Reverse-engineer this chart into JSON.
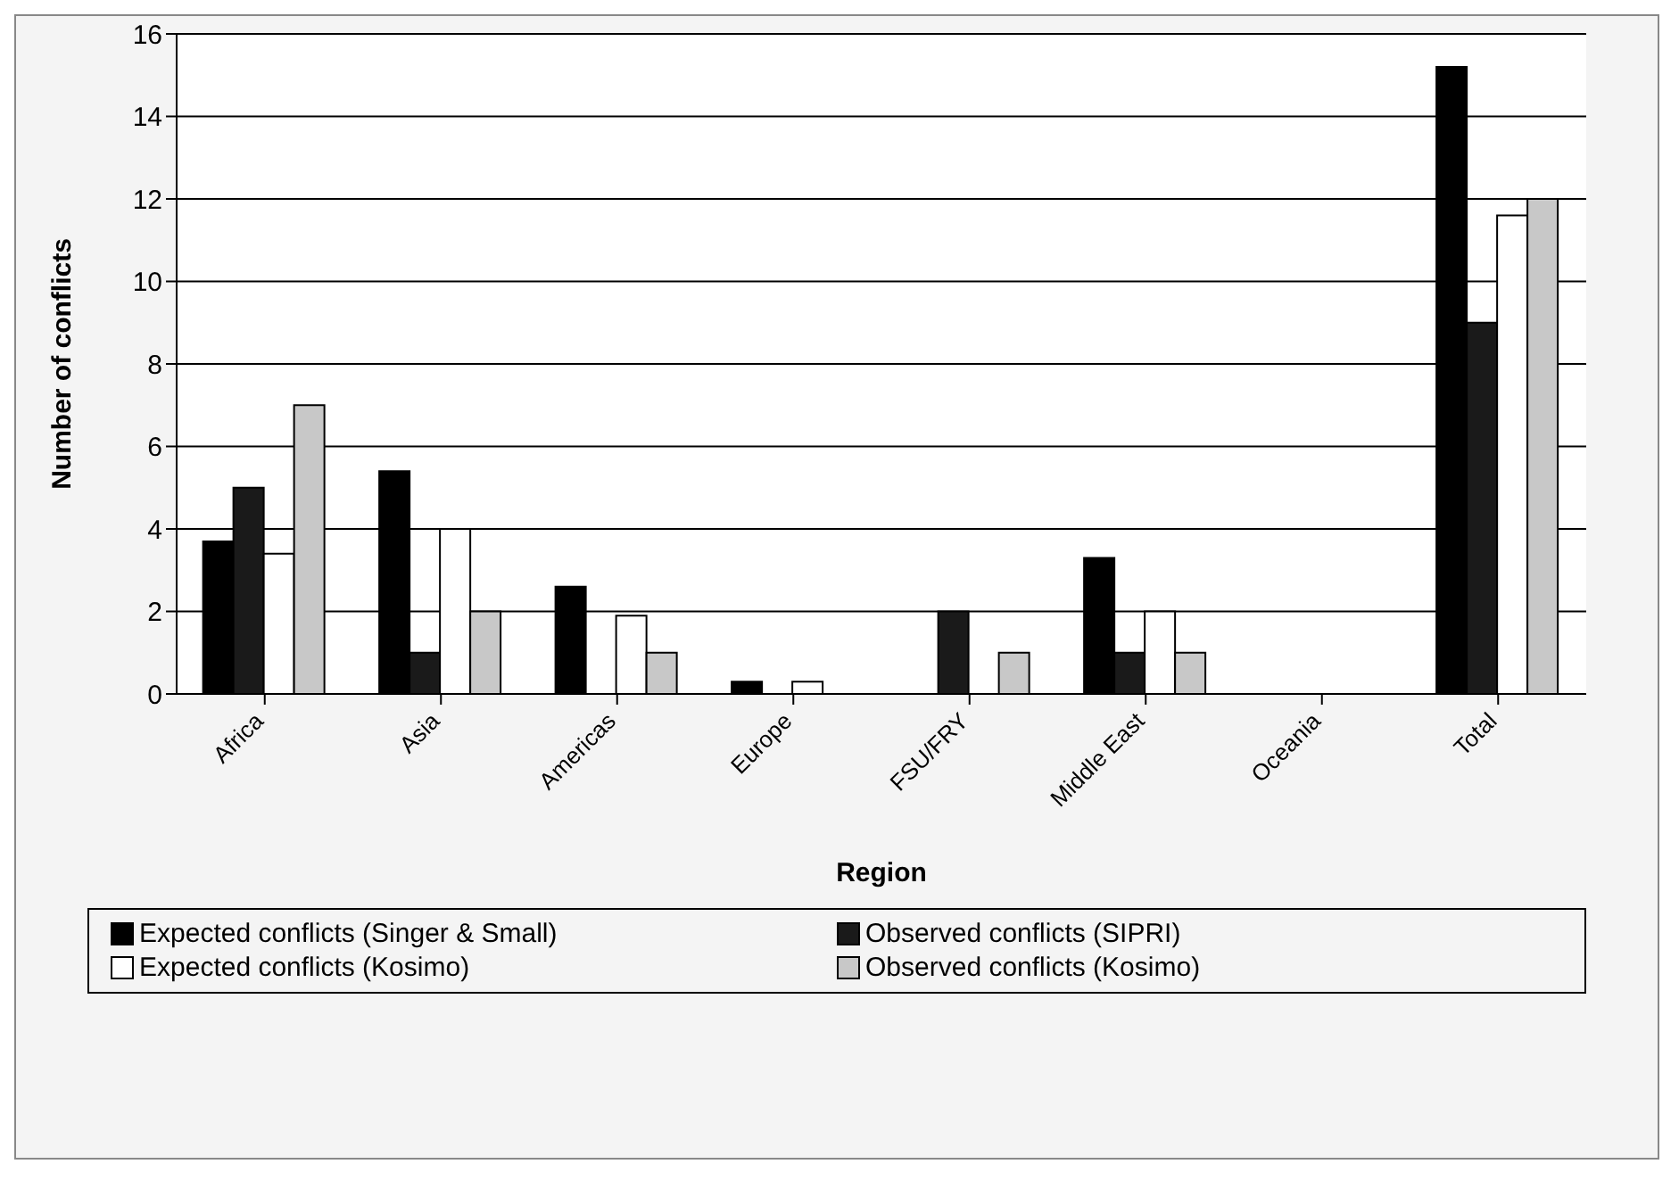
{
  "chart_data": {
    "type": "bar",
    "xlabel": "Region",
    "ylabel": "Number of conflicts",
    "categories": [
      "Africa",
      "Asia",
      "Americas",
      "Europe",
      "FSU/FRY",
      "Middle East",
      "Oceania",
      "Total"
    ],
    "series": [
      {
        "name": "Expected conflicts (Singer & Small)",
        "color": "#000000",
        "values": [
          3.7,
          5.4,
          2.6,
          0.3,
          0,
          3.3,
          0,
          15.2
        ]
      },
      {
        "name": "Observed conflicts (SIPRI)",
        "color": "#1a1a1a",
        "values": [
          5,
          1,
          0,
          0,
          2,
          1,
          0,
          9
        ]
      },
      {
        "name": "Expected conflicts (Kosimo)",
        "color": "#ffffff",
        "values": [
          3.4,
          4,
          1.9,
          0.3,
          0,
          2,
          0,
          11.6
        ]
      },
      {
        "name": "Observed conflicts (Kosimo)",
        "color": "#c8c8c8",
        "values": [
          7,
          2,
          1,
          0,
          1,
          1,
          0,
          12
        ]
      }
    ],
    "ylim": [
      0,
      16
    ],
    "yticks": [
      0,
      2,
      4,
      6,
      8,
      10,
      12,
      14,
      16
    ],
    "grid": "y",
    "legend": "bottom"
  }
}
